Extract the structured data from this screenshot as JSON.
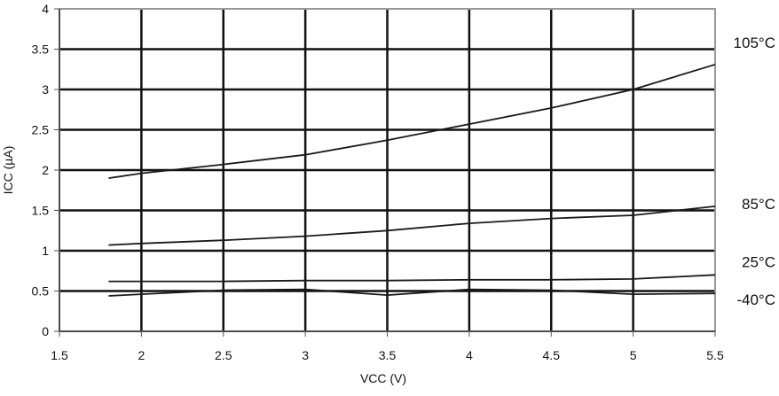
{
  "chart_data": {
    "type": "line",
    "xlabel": "VCC (V)",
    "ylabel": "ICC (µA)",
    "x": [
      1.8,
      2,
      2.5,
      3,
      3.5,
      4,
      4.5,
      5,
      5.5
    ],
    "series": [
      {
        "name": "105°C",
        "color": "#1a1a1a",
        "values": [
          1.9,
          1.96,
          2.07,
          2.19,
          2.37,
          2.57,
          2.77,
          3.0,
          3.31
        ]
      },
      {
        "name": "85°C",
        "color": "#1a1a1a",
        "values": [
          1.07,
          1.09,
          1.13,
          1.18,
          1.25,
          1.34,
          1.4,
          1.44,
          1.55
        ]
      },
      {
        "name": "25°C",
        "color": "#1a1a1a",
        "values": [
          0.62,
          0.62,
          0.62,
          0.63,
          0.63,
          0.64,
          0.64,
          0.65,
          0.7
        ]
      },
      {
        "name": "-40°C",
        "color": "#1a1a1a",
        "values": [
          0.44,
          0.46,
          0.51,
          0.52,
          0.45,
          0.52,
          0.51,
          0.46,
          0.47
        ]
      }
    ],
    "xlim": [
      1.5,
      5.5
    ],
    "xticks": [
      1.5,
      2,
      2.5,
      3,
      3.5,
      4,
      4.5,
      5,
      5.5
    ],
    "ylim": [
      0,
      4
    ],
    "yticks": [
      0,
      0.5,
      1,
      1.5,
      2,
      2.5,
      3,
      3.5,
      4
    ],
    "grid": true
  }
}
